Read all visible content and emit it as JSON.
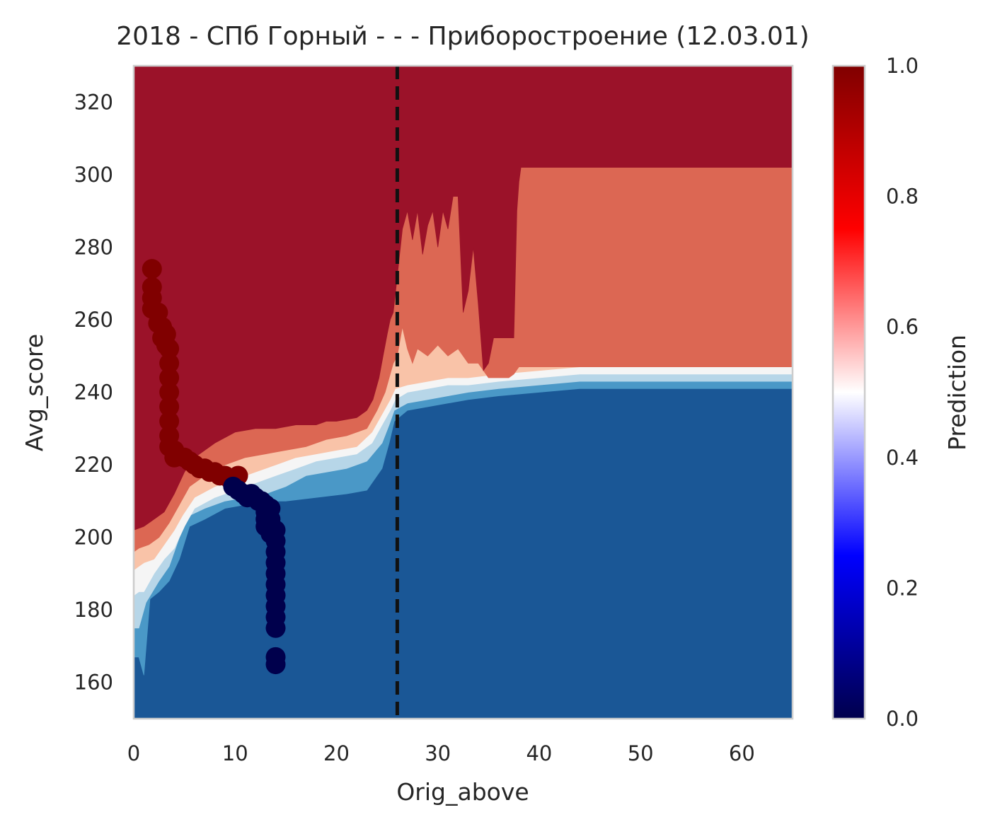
{
  "chart_data": {
    "type": "contour",
    "title": "2018 - СПб Горный - - - Приборостроение (12.03.01)",
    "xlabel": "Orig_above",
    "ylabel": "Avg_score",
    "xlim": [
      0,
      65
    ],
    "ylim": [
      150,
      330
    ],
    "xticks": [
      {
        "value": 0,
        "label": "0"
      },
      {
        "value": 10,
        "label": "10"
      },
      {
        "value": 20,
        "label": "20"
      },
      {
        "value": 30,
        "label": "30"
      },
      {
        "value": 40,
        "label": "40"
      },
      {
        "value": 50,
        "label": "50"
      },
      {
        "value": 60,
        "label": "60"
      }
    ],
    "yticks": [
      {
        "value": 160,
        "label": "160"
      },
      {
        "value": 180,
        "label": "180"
      },
      {
        "value": 200,
        "label": "200"
      },
      {
        "value": 220,
        "label": "220"
      },
      {
        "value": 240,
        "label": "240"
      },
      {
        "value": 260,
        "label": "260"
      },
      {
        "value": 280,
        "label": "280"
      },
      {
        "value": 300,
        "label": "300"
      },
      {
        "value": 320,
        "label": "320"
      }
    ],
    "grid": false,
    "contour_colors": [
      "#1a5796",
      "#4a98c7",
      "#b7d6e8",
      "#f5f5f5",
      "#f9c3a8",
      "#dc6753",
      "#9b1229"
    ],
    "boundaries": [
      [
        [
          0,
          167
        ],
        [
          0.5,
          167
        ],
        [
          1,
          162
        ],
        [
          1.6,
          183
        ],
        [
          2.5,
          185
        ],
        [
          3.5,
          188
        ],
        [
          4.5,
          194
        ],
        [
          5.5,
          203
        ],
        [
          7,
          205
        ],
        [
          9,
          208
        ],
        [
          11,
          209
        ],
        [
          13,
          210
        ],
        [
          15,
          210
        ],
        [
          18,
          211
        ],
        [
          21,
          212
        ],
        [
          23,
          213
        ],
        [
          24.5,
          219
        ],
        [
          25.2,
          226
        ],
        [
          25.7,
          232
        ],
        [
          27,
          235
        ],
        [
          29,
          236
        ],
        [
          31,
          237
        ],
        [
          33,
          238
        ],
        [
          36,
          239
        ],
        [
          40,
          240
        ],
        [
          44,
          241
        ],
        [
          65,
          241
        ]
      ],
      [
        [
          0,
          175
        ],
        [
          0.5,
          175
        ],
        [
          1.2,
          182
        ],
        [
          2.5,
          188
        ],
        [
          3.5,
          192
        ],
        [
          4.5,
          200
        ],
        [
          5.5,
          206
        ],
        [
          7,
          208
        ],
        [
          9,
          210
        ],
        [
          11,
          211
        ],
        [
          13,
          212
        ],
        [
          15,
          214
        ],
        [
          17,
          217
        ],
        [
          19,
          218
        ],
        [
          21,
          219
        ],
        [
          23,
          221
        ],
        [
          24.5,
          226
        ],
        [
          25.2,
          231
        ],
        [
          25.7,
          235
        ],
        [
          27,
          237
        ],
        [
          29,
          238
        ],
        [
          31,
          239
        ],
        [
          33,
          240
        ],
        [
          36,
          241
        ],
        [
          40,
          242
        ],
        [
          44,
          243
        ],
        [
          65,
          243
        ]
      ],
      [
        [
          0,
          184
        ],
        [
          0.5,
          185
        ],
        [
          1,
          185
        ],
        [
          2,
          190
        ],
        [
          3,
          194
        ],
        [
          4,
          197
        ],
        [
          5,
          203
        ],
        [
          6,
          208
        ],
        [
          8,
          211
        ],
        [
          10,
          213
        ],
        [
          12,
          215
        ],
        [
          14,
          217
        ],
        [
          16,
          219
        ],
        [
          18,
          221
        ],
        [
          20,
          222
        ],
        [
          22,
          223
        ],
        [
          23.5,
          226
        ],
        [
          24.5,
          231
        ],
        [
          25.3,
          235
        ],
        [
          25.8,
          238
        ],
        [
          27,
          240
        ],
        [
          29,
          241
        ],
        [
          31,
          242
        ],
        [
          33,
          242
        ],
        [
          36,
          243
        ],
        [
          40,
          244
        ],
        [
          44,
          245
        ],
        [
          65,
          245
        ]
      ],
      [
        [
          0,
          191
        ],
        [
          0.5,
          192
        ],
        [
          1,
          193
        ],
        [
          2,
          194
        ],
        [
          3,
          198
        ],
        [
          4,
          202
        ],
        [
          4.8,
          206
        ],
        [
          6,
          211
        ],
        [
          8,
          214
        ],
        [
          10,
          216
        ],
        [
          12,
          218
        ],
        [
          14,
          220
        ],
        [
          16,
          222
        ],
        [
          18,
          223
        ],
        [
          20,
          224
        ],
        [
          22,
          225
        ],
        [
          23.5,
          229
        ],
        [
          24.5,
          234
        ],
        [
          25.3,
          238
        ],
        [
          25.8,
          241
        ],
        [
          27,
          242
        ],
        [
          29,
          243
        ],
        [
          31,
          244
        ],
        [
          33,
          244
        ],
        [
          36,
          245
        ],
        [
          40,
          246
        ],
        [
          44,
          247
        ],
        [
          65,
          247
        ]
      ],
      [
        [
          0,
          196
        ],
        [
          0.5,
          197
        ],
        [
          1.5,
          198
        ],
        [
          2.5,
          200
        ],
        [
          3.5,
          204
        ],
        [
          4.5,
          209
        ],
        [
          5.5,
          214
        ],
        [
          7,
          217
        ],
        [
          9,
          220
        ],
        [
          11,
          222
        ],
        [
          13,
          223
        ],
        [
          15,
          224
        ],
        [
          17,
          225
        ],
        [
          19,
          227
        ],
        [
          21,
          228
        ],
        [
          23,
          230
        ],
        [
          24,
          235
        ],
        [
          24.8,
          240
        ],
        [
          25.3,
          245
        ],
        [
          25.6,
          248
        ],
        [
          26,
          250
        ],
        [
          26.5,
          258
        ],
        [
          27,
          252
        ],
        [
          27.5,
          248
        ],
        [
          28,
          252
        ],
        [
          29,
          250
        ],
        [
          30,
          253
        ],
        [
          31,
          250
        ],
        [
          32,
          252
        ],
        [
          33,
          248
        ],
        [
          34,
          248
        ],
        [
          35,
          244
        ],
        [
          36,
          244
        ],
        [
          37,
          244
        ],
        [
          37.5,
          245
        ],
        [
          38,
          247
        ],
        [
          65,
          247
        ]
      ],
      [
        [
          0,
          202
        ],
        [
          1,
          203
        ],
        [
          2,
          205
        ],
        [
          3,
          207
        ],
        [
          4,
          212
        ],
        [
          5,
          218
        ],
        [
          6,
          222
        ],
        [
          8,
          226
        ],
        [
          10,
          229
        ],
        [
          12,
          230
        ],
        [
          14,
          230
        ],
        [
          16,
          231
        ],
        [
          18,
          231
        ],
        [
          19,
          232
        ],
        [
          20,
          232
        ],
        [
          22,
          233
        ],
        [
          23,
          235
        ],
        [
          23.6,
          238
        ],
        [
          24.2,
          244
        ],
        [
          24.6,
          250
        ],
        [
          25,
          256
        ],
        [
          25.3,
          260
        ],
        [
          25.6,
          262
        ],
        [
          26,
          272
        ],
        [
          26.5,
          285
        ],
        [
          27,
          290
        ],
        [
          27.5,
          282
        ],
        [
          28,
          290
        ],
        [
          28.5,
          278
        ],
        [
          29,
          286
        ],
        [
          29.5,
          290
        ],
        [
          30,
          280
        ],
        [
          30.5,
          290
        ],
        [
          31,
          285
        ],
        [
          31.5,
          294
        ],
        [
          32,
          294
        ],
        [
          32.5,
          262
        ],
        [
          33,
          268
        ],
        [
          33.5,
          280
        ],
        [
          34,
          264
        ],
        [
          34.5,
          246
        ],
        [
          35,
          248
        ],
        [
          35.5,
          255
        ],
        [
          36,
          255
        ],
        [
          36.5,
          255
        ],
        [
          37,
          255
        ],
        [
          37.5,
          255
        ],
        [
          37.8,
          290
        ],
        [
          38,
          298
        ],
        [
          38.2,
          302
        ],
        [
          65,
          302
        ]
      ]
    ],
    "vline": {
      "x": 26,
      "style": "dashed",
      "color": "#111111"
    },
    "points_class1": [
      [
        1.8,
        274
      ],
      [
        1.8,
        269
      ],
      [
        1.8,
        266
      ],
      [
        1.8,
        263
      ],
      [
        2.4,
        262
      ],
      [
        2.4,
        259
      ],
      [
        2.8,
        258
      ],
      [
        2.8,
        255
      ],
      [
        3.2,
        256
      ],
      [
        3.2,
        253
      ],
      [
        3.5,
        252
      ],
      [
        3.5,
        248
      ],
      [
        3.5,
        244
      ],
      [
        3.5,
        240
      ],
      [
        3.5,
        236
      ],
      [
        3.5,
        232
      ],
      [
        3.5,
        228
      ],
      [
        3.5,
        225
      ],
      [
        4,
        224
      ],
      [
        4,
        222
      ],
      [
        5,
        222
      ],
      [
        5.5,
        221
      ],
      [
        6,
        220
      ],
      [
        6.5,
        219
      ],
      [
        7,
        219
      ],
      [
        7.5,
        218
      ],
      [
        8,
        218
      ],
      [
        8.5,
        217
      ],
      [
        9,
        217
      ],
      [
        9.5,
        216
      ],
      [
        10,
        216
      ],
      [
        10.3,
        217
      ]
    ],
    "points_class0": [
      [
        9.8,
        214
      ],
      [
        10.3,
        213
      ],
      [
        10.8,
        212
      ],
      [
        11.2,
        211
      ],
      [
        11.6,
        212
      ],
      [
        12,
        211
      ],
      [
        12.3,
        210
      ],
      [
        12.6,
        210
      ],
      [
        13,
        209
      ],
      [
        13,
        207
      ],
      [
        13,
        205
      ],
      [
        13,
        203
      ],
      [
        13.5,
        208
      ],
      [
        13.5,
        205
      ],
      [
        13.5,
        201
      ],
      [
        14,
        202
      ],
      [
        14,
        199
      ],
      [
        14,
        196
      ],
      [
        14,
        193
      ],
      [
        14,
        190
      ],
      [
        14,
        187
      ],
      [
        14,
        184
      ],
      [
        14,
        181
      ],
      [
        14,
        178
      ],
      [
        14,
        175
      ],
      [
        14,
        167
      ],
      [
        14,
        165
      ]
    ],
    "point_colors": {
      "class0": "#00004c",
      "class1": "#800000"
    },
    "colorbar": {
      "label": "Prediction",
      "range": [
        0,
        1
      ],
      "ticks": [
        {
          "value": 0,
          "label": "0.0"
        },
        {
          "value": 0.2,
          "label": "0.2"
        },
        {
          "value": 0.4,
          "label": "0.4"
        },
        {
          "value": 0.6,
          "label": "0.6"
        },
        {
          "value": 0.8,
          "label": "0.8"
        },
        {
          "value": 1,
          "label": "1.0"
        }
      ],
      "gradient": [
        "#00004c",
        "#0000ff",
        "#ffffff",
        "#ff0000",
        "#800000"
      ]
    }
  }
}
